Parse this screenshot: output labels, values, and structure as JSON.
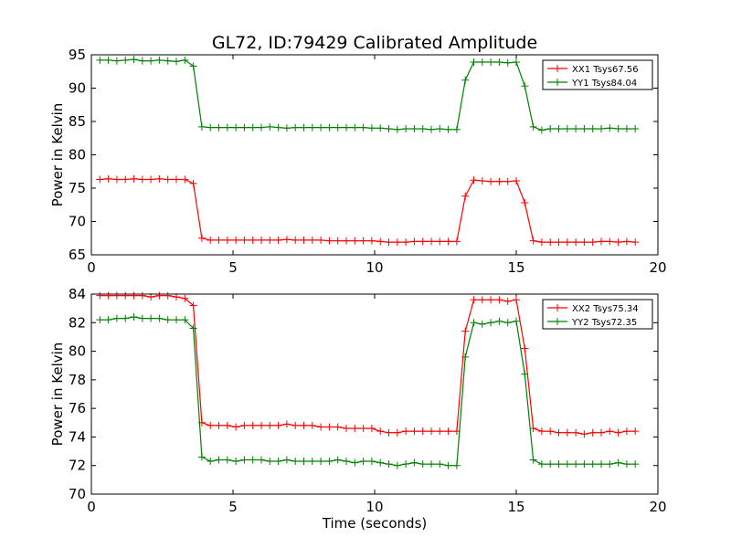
{
  "figure": {
    "title": "GL72, ID:79429 Calibrated Amplitude"
  },
  "chart_data": [
    {
      "type": "line",
      "ylabel": "Power in Kelvin",
      "xlabel": "",
      "xlim": [
        0,
        20
      ],
      "ylim": [
        65,
        95
      ],
      "xticks": [
        "0",
        "5",
        "10",
        "15",
        "20"
      ],
      "yticks": [
        "65",
        "70",
        "75",
        "80",
        "85",
        "90",
        "95"
      ],
      "legend": "top-right",
      "x": [
        0.3,
        0.6,
        0.9,
        1.2,
        1.5,
        1.8,
        2.1,
        2.4,
        2.7,
        3.0,
        3.3,
        3.6,
        3.9,
        4.2,
        4.5,
        4.8,
        5.1,
        5.4,
        5.7,
        6.0,
        6.3,
        6.6,
        6.9,
        7.2,
        7.5,
        7.8,
        8.1,
        8.4,
        8.7,
        9.0,
        9.3,
        9.6,
        9.9,
        10.2,
        10.5,
        10.8,
        11.1,
        11.4,
        11.7,
        12.0,
        12.3,
        12.6,
        12.9,
        13.2,
        13.5,
        13.8,
        14.1,
        14.4,
        14.7,
        15.0,
        15.3,
        15.6,
        15.9,
        16.2,
        16.5,
        16.8,
        17.1,
        17.4,
        17.7,
        18.0,
        18.3,
        18.6,
        18.9,
        19.2
      ],
      "series": [
        {
          "name": "XX1 Tsys67.56",
          "color": "#ff0000",
          "values": [
            76.3,
            76.4,
            76.3,
            76.3,
            76.4,
            76.3,
            76.3,
            76.4,
            76.3,
            76.3,
            76.3,
            75.7,
            67.5,
            67.2,
            67.2,
            67.2,
            67.2,
            67.2,
            67.2,
            67.2,
            67.2,
            67.2,
            67.3,
            67.2,
            67.2,
            67.2,
            67.2,
            67.1,
            67.1,
            67.1,
            67.1,
            67.1,
            67.1,
            67.0,
            66.9,
            66.9,
            66.9,
            67.0,
            67.0,
            67.0,
            67.0,
            67.0,
            67.0,
            73.8,
            76.2,
            76.1,
            76.0,
            76.0,
            76.0,
            76.1,
            72.8,
            67.1,
            66.9,
            66.9,
            66.9,
            66.9,
            66.9,
            66.9,
            66.9,
            67.0,
            67.0,
            66.9,
            67.0,
            66.9
          ]
        },
        {
          "name": "YY1 Tsys84.04",
          "color": "#008000",
          "values": [
            94.2,
            94.2,
            94.1,
            94.2,
            94.3,
            94.1,
            94.1,
            94.2,
            94.1,
            94.0,
            94.2,
            93.3,
            84.2,
            84.1,
            84.1,
            84.1,
            84.1,
            84.1,
            84.1,
            84.1,
            84.2,
            84.1,
            84.0,
            84.1,
            84.1,
            84.1,
            84.1,
            84.1,
            84.1,
            84.1,
            84.1,
            84.1,
            84.0,
            84.0,
            83.9,
            83.8,
            83.9,
            83.9,
            83.9,
            83.8,
            83.9,
            83.8,
            83.8,
            91.2,
            93.9,
            93.9,
            93.9,
            93.9,
            93.8,
            93.9,
            90.3,
            84.2,
            83.7,
            83.9,
            83.9,
            83.9,
            83.9,
            83.9,
            83.9,
            83.9,
            84.0,
            83.9,
            83.9,
            83.9
          ]
        }
      ]
    },
    {
      "type": "line",
      "ylabel": "Power in Kelvin",
      "xlabel": "Time (seconds)",
      "xlim": [
        0,
        20
      ],
      "ylim": [
        70,
        84
      ],
      "xticks": [
        "0",
        "5",
        "10",
        "15",
        "20"
      ],
      "yticks": [
        "70",
        "72",
        "74",
        "76",
        "78",
        "80",
        "82",
        "84"
      ],
      "legend": "top-right",
      "x": [
        0.3,
        0.6,
        0.9,
        1.2,
        1.5,
        1.8,
        2.1,
        2.4,
        2.7,
        3.0,
        3.3,
        3.6,
        3.9,
        4.2,
        4.5,
        4.8,
        5.1,
        5.4,
        5.7,
        6.0,
        6.3,
        6.6,
        6.9,
        7.2,
        7.5,
        7.8,
        8.1,
        8.4,
        8.7,
        9.0,
        9.3,
        9.6,
        9.9,
        10.2,
        10.5,
        10.8,
        11.1,
        11.4,
        11.7,
        12.0,
        12.3,
        12.6,
        12.9,
        13.2,
        13.5,
        13.8,
        14.1,
        14.4,
        14.7,
        15.0,
        15.3,
        15.6,
        15.9,
        16.2,
        16.5,
        16.8,
        17.1,
        17.4,
        17.7,
        18.0,
        18.3,
        18.6,
        18.9,
        19.2
      ],
      "series": [
        {
          "name": "XX2 Tsys75.34",
          "color": "#ff0000",
          "values": [
            83.9,
            83.9,
            83.9,
            83.9,
            83.9,
            83.9,
            83.8,
            83.9,
            83.9,
            83.8,
            83.7,
            83.2,
            75.0,
            74.8,
            74.8,
            74.8,
            74.7,
            74.8,
            74.8,
            74.8,
            74.8,
            74.8,
            74.9,
            74.8,
            74.8,
            74.8,
            74.7,
            74.7,
            74.7,
            74.6,
            74.6,
            74.6,
            74.6,
            74.4,
            74.3,
            74.3,
            74.4,
            74.4,
            74.4,
            74.4,
            74.4,
            74.4,
            74.4,
            81.4,
            83.6,
            83.6,
            83.6,
            83.6,
            83.5,
            83.6,
            80.2,
            74.6,
            74.4,
            74.4,
            74.3,
            74.3,
            74.3,
            74.2,
            74.3,
            74.3,
            74.4,
            74.3,
            74.4,
            74.4
          ]
        },
        {
          "name": "YY2 Tsys72.35",
          "color": "#008000",
          "values": [
            82.2,
            82.2,
            82.3,
            82.3,
            82.4,
            82.3,
            82.3,
            82.3,
            82.2,
            82.2,
            82.2,
            81.6,
            72.6,
            72.3,
            72.4,
            72.4,
            72.3,
            72.4,
            72.4,
            72.4,
            72.3,
            72.3,
            72.4,
            72.3,
            72.3,
            72.3,
            72.3,
            72.3,
            72.4,
            72.3,
            72.2,
            72.3,
            72.3,
            72.2,
            72.1,
            72.0,
            72.1,
            72.2,
            72.1,
            72.1,
            72.1,
            72.0,
            72.0,
            79.6,
            82.0,
            81.9,
            82.0,
            82.1,
            82.0,
            82.1,
            78.4,
            72.4,
            72.1,
            72.1,
            72.1,
            72.1,
            72.1,
            72.1,
            72.1,
            72.1,
            72.1,
            72.2,
            72.1,
            72.1
          ]
        }
      ]
    }
  ]
}
